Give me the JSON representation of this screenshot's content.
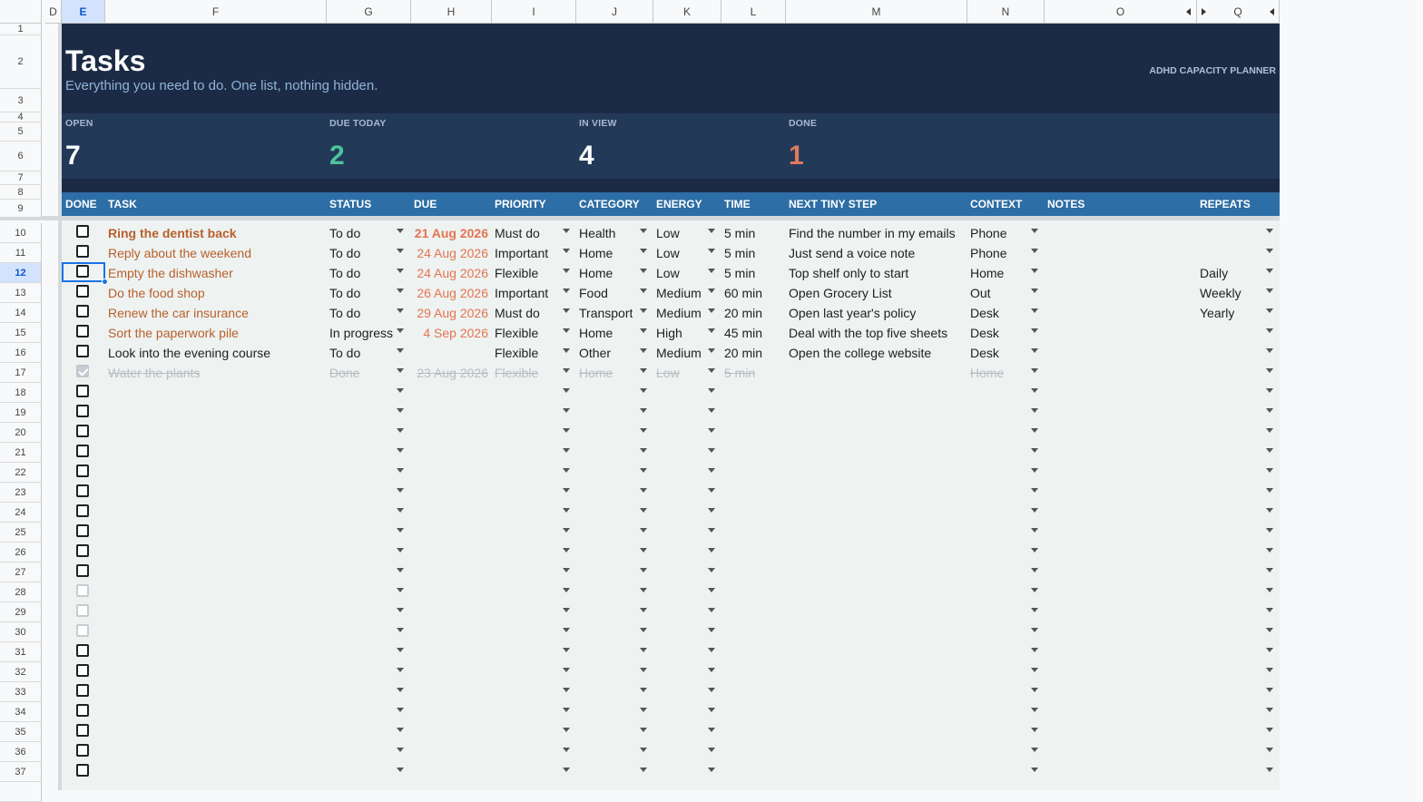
{
  "columns": [
    "D",
    "E",
    "F",
    "G",
    "H",
    "I",
    "J",
    "K",
    "L",
    "M",
    "N",
    "O",
    "Q"
  ],
  "banner": {
    "title": "Tasks",
    "subtitle": "Everything you need to do. One list, nothing hidden.",
    "brand": "ADHD CAPACITY PLANNER"
  },
  "stats": [
    {
      "label": "OPEN",
      "value": "7",
      "color": "#ffffff"
    },
    {
      "label": "DUE TODAY",
      "value": "2",
      "color": "#4fc39c"
    },
    {
      "label": "IN VIEW",
      "value": "4",
      "color": "#ffffff"
    },
    {
      "label": "DONE",
      "value": "1",
      "color": "#e07a5f"
    }
  ],
  "headers": [
    "DONE",
    "TASK",
    "STATUS",
    "DUE",
    "PRIORITY",
    "CATEGORY",
    "ENERGY",
    "TIME",
    "NEXT TINY STEP",
    "CONTEXT",
    "NOTES",
    "REPEATS"
  ],
  "tasks": [
    {
      "task": "Ring the dentist back",
      "status": "To do",
      "due": "21 Aug 2026",
      "priority": "Must do",
      "category": "Health",
      "energy": "Low",
      "time": "5 min",
      "next": "Find the number in my emails",
      "context": "Phone",
      "repeats": ""
    },
    {
      "task": "Reply about the weekend",
      "status": "To do",
      "due": "24 Aug 2026",
      "priority": "Important",
      "category": "Home",
      "energy": "Low",
      "time": "5 min",
      "next": "Just send a voice note",
      "context": "Phone",
      "repeats": ""
    },
    {
      "task": "Empty the dishwasher",
      "status": "To do",
      "due": "24 Aug 2026",
      "priority": "Flexible",
      "category": "Home",
      "energy": "Low",
      "time": "5 min",
      "next": "Top shelf only to start",
      "context": "Home",
      "repeats": "Daily"
    },
    {
      "task": "Do the food shop",
      "status": "To do",
      "due": "26 Aug 2026",
      "priority": "Important",
      "category": "Food",
      "energy": "Medium",
      "time": "60 min",
      "next": "Open Grocery List",
      "context": "Out",
      "repeats": "Weekly"
    },
    {
      "task": "Renew the car insurance",
      "status": "To do",
      "due": "29 Aug 2026",
      "priority": "Must do",
      "category": "Transport",
      "energy": "Medium",
      "time": "20 min",
      "next": "Open last year's policy",
      "context": "Desk",
      "repeats": "Yearly"
    },
    {
      "task": "Sort the paperwork pile",
      "status": "In progress",
      "due": "4 Sep 2026",
      "priority": "Flexible",
      "category": "Home",
      "energy": "High",
      "time": "45 min",
      "next": "Deal with the top five sheets",
      "context": "Desk",
      "repeats": ""
    },
    {
      "task": "Look into the evening course",
      "status": "To do",
      "due": "",
      "priority": "Flexible",
      "category": "Other",
      "energy": "Medium",
      "time": "20 min",
      "next": "Open the college website",
      "context": "Desk",
      "repeats": ""
    },
    {
      "task": "Water the plants",
      "status": "Done",
      "due": "23 Aug 2026",
      "priority": "Flexible",
      "category": "Home",
      "energy": "Low",
      "time": "5 min",
      "next": "",
      "context": "Home",
      "repeats": ""
    }
  ],
  "colors": {
    "overdue": "#e5734f",
    "task_accent": "#b8602a",
    "banner": "#1c2b45",
    "header": "#2d6ea6",
    "row_bg": "#eef2f1"
  }
}
